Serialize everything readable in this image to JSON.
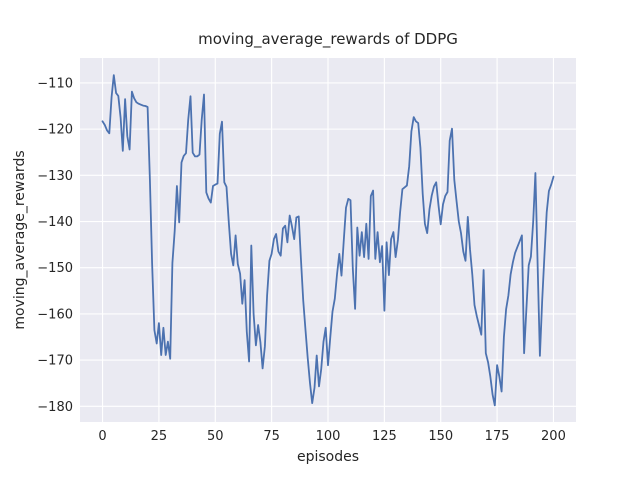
{
  "figure": {
    "background": "#ffffff",
    "axes_background": "#eaeaf2",
    "grid_color": "#ffffff",
    "line_color": "#4c72b0",
    "text_color": "#262626"
  },
  "chart_data": {
    "type": "line",
    "title": "moving_average_rewards of DDPG",
    "xlabel": "episodes",
    "ylabel": "moving_average_rewards",
    "legend": false,
    "grid": true,
    "x_ticks": [
      0,
      25,
      50,
      75,
      100,
      125,
      150,
      175,
      200
    ],
    "y_ticks": [
      -110,
      -120,
      -130,
      -140,
      -150,
      -160,
      -170,
      -180
    ],
    "xlim": [
      -10,
      210
    ],
    "ylim": [
      -183.4,
      -104.6
    ],
    "series": [
      {
        "name": "moving_average_rewards",
        "x_start": 0,
        "x_step": 1,
        "values": [
          -118.3,
          -119.1,
          -120.3,
          -120.9,
          -113.0,
          -108.3,
          -112.2,
          -112.8,
          -117.5,
          -124.7,
          -113.5,
          -121.5,
          -124.4,
          -111.9,
          -113.3,
          -114.2,
          -114.5,
          -114.7,
          -114.9,
          -115.0,
          -115.2,
          -131.0,
          -149.0,
          -163.5,
          -166.4,
          -162.0,
          -168.9,
          -163.0,
          -168.9,
          -166.0,
          -169.7,
          -149.0,
          -142.0,
          -132.3,
          -140.2,
          -127.2,
          -125.8,
          -125.2,
          -118.0,
          -112.9,
          -125.1,
          -125.9,
          -125.9,
          -125.5,
          -118.0,
          -112.5,
          -133.7,
          -135.0,
          -135.9,
          -132.3,
          -132.0,
          -131.8,
          -121.0,
          -118.4,
          -131.5,
          -132.5,
          -140.2,
          -147.0,
          -149.5,
          -143.0,
          -149.2,
          -151.3,
          -157.8,
          -152.7,
          -163.9,
          -170.3,
          -145.2,
          -160.0,
          -166.8,
          -162.4,
          -166.1,
          -171.8,
          -167.0,
          -156.0,
          -148.5,
          -147.0,
          -143.8,
          -142.7,
          -146.5,
          -147.4,
          -141.5,
          -140.9,
          -144.5,
          -138.7,
          -141.0,
          -143.8,
          -139.1,
          -138.9,
          -148.0,
          -157.0,
          -163.5,
          -169.5,
          -175.0,
          -179.3,
          -176.0,
          -169.0,
          -175.7,
          -172.0,
          -166.0,
          -163.0,
          -171.1,
          -165.0,
          -159.5,
          -156.7,
          -151.5,
          -147.0,
          -151.7,
          -144.0,
          -137.0,
          -135.1,
          -135.4,
          -150.2,
          -158.9,
          -141.3,
          -147.4,
          -142.3,
          -147.7,
          -140.5,
          -148.1,
          -134.5,
          -133.3,
          -148.1,
          -142.3,
          -148.8,
          -145.3,
          -159.3,
          -144.5,
          -151.6,
          -143.8,
          -142.3,
          -147.7,
          -144.0,
          -138.0,
          -133.0,
          -132.6,
          -132.2,
          -128.0,
          -120.5,
          -117.4,
          -118.3,
          -118.7,
          -124.0,
          -134.0,
          -140.5,
          -142.5,
          -137.3,
          -134.4,
          -132.4,
          -131.5,
          -136.5,
          -140.6,
          -136.3,
          -134.5,
          -133.6,
          -122.5,
          -119.9,
          -131.0,
          -135.5,
          -140.0,
          -142.5,
          -146.5,
          -148.5,
          -139.0,
          -146.0,
          -151.5,
          -158.1,
          -160.5,
          -162.5,
          -164.5,
          -150.5,
          -168.5,
          -170.5,
          -173.5,
          -177.5,
          -179.8,
          -171.1,
          -173.5,
          -176.8,
          -165.0,
          -159.0,
          -156.0,
          -151.5,
          -148.8,
          -146.8,
          -145.5,
          -144.3,
          -143.0,
          -168.5,
          -158.9,
          -149.5,
          -147.6,
          -140.0,
          -129.5,
          -150.0,
          -169.1,
          -157.0,
          -147.5,
          -138.0,
          -133.4,
          -132.0,
          -130.3
        ]
      }
    ]
  }
}
